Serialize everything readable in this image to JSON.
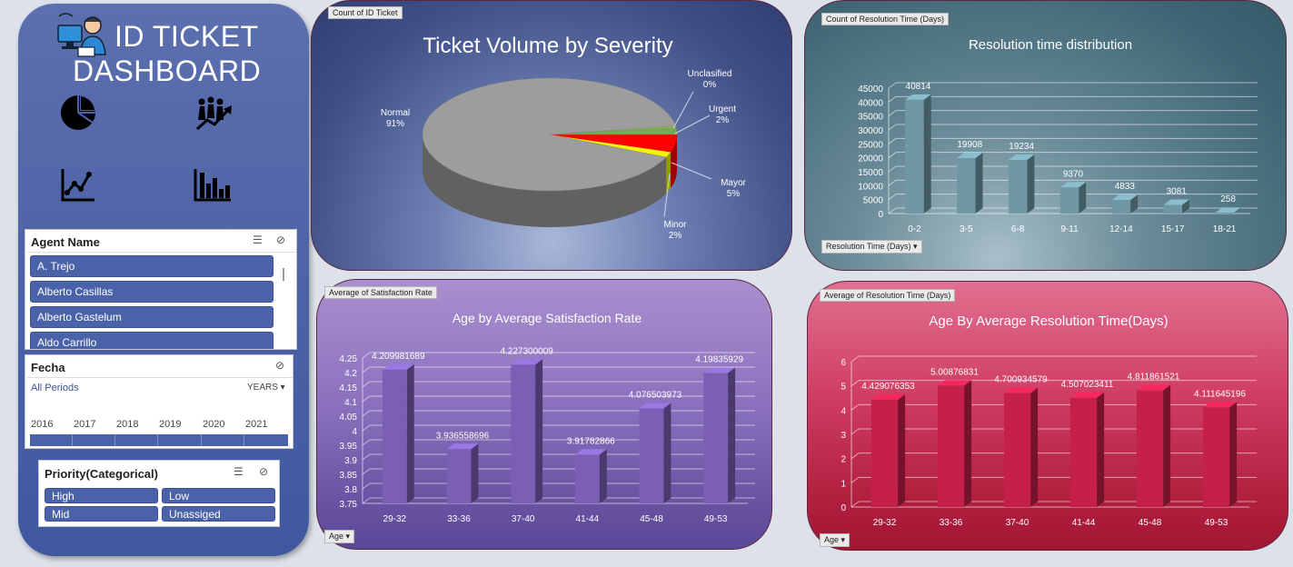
{
  "sidebar": {
    "title_line1": "ID TICKET",
    "title_line2": "DASHBOARD",
    "icons": [
      "pie-chart-icon",
      "growth-team-icon",
      "line-chart-icon",
      "bar-chart-icon"
    ],
    "agent_slicer": {
      "title": "Agent Name",
      "items": [
        "A. Trejo",
        "Alberto Casillas",
        "Alberto Gastelum",
        "Aldo Carrillo"
      ]
    },
    "fecha_slicer": {
      "title": "Fecha",
      "all_periods": "All Periods",
      "period_unit": "YEARS",
      "years": [
        "2016",
        "2017",
        "2018",
        "2019",
        "2020",
        "2021"
      ]
    },
    "priority_slicer": {
      "title": "Priority(Categorical)",
      "items": [
        "High",
        "Low",
        "Mid",
        "Unassiged"
      ]
    }
  },
  "charts": {
    "severity": {
      "field_button": "Count of ID Ticket",
      "chart_data": {
        "type": "pie",
        "title": "Ticket Volume by Severity",
        "labels": [
          "Normal",
          "Unclasified",
          "Urgent",
          "Mayor",
          "Minor"
        ],
        "values": [
          91,
          0,
          2,
          5,
          2
        ],
        "label_texts": [
          "91%",
          "0%",
          "2%",
          "5%",
          "2%"
        ],
        "colors": [
          "#9d9d9d",
          "#8bc34a",
          "#7aa85a",
          "#ff0000",
          "#f5f500"
        ]
      }
    },
    "resolution_dist": {
      "field_button": "Count of Resolution Time (Days)",
      "axis_button": "Resolution Time (Days)",
      "chart_data": {
        "type": "bar",
        "title": "Resolution time distribution",
        "categories": [
          "0-2",
          "3-5",
          "6-8",
          "9-11",
          "12-14",
          "15-17",
          "18-21"
        ],
        "values": [
          40814,
          19908,
          19234,
          9370,
          4833,
          3081,
          258
        ],
        "ylim": [
          0,
          45000
        ],
        "yticks": [
          "0",
          "5000",
          "10000",
          "15000",
          "20000",
          "25000",
          "30000",
          "35000",
          "40000",
          "45000"
        ],
        "data_labels": [
          "40814",
          "19908",
          "19234",
          "9370",
          "4833",
          "3081",
          "258"
        ]
      }
    },
    "satisfaction": {
      "field_button": "Average of Satisfaction Rate",
      "axis_button": "Age",
      "chart_data": {
        "type": "bar",
        "title": "Age by Average Satisfaction Rate",
        "categories": [
          "29-32",
          "33-36",
          "37-40",
          "41-44",
          "45-48",
          "49-53"
        ],
        "values": [
          4.209981689,
          3.936558696,
          4.227300009,
          3.91782866,
          4.076503973,
          4.19835929
        ],
        "ylim": [
          3.75,
          4.25
        ],
        "yticks": [
          "3.75",
          "3.8",
          "3.85",
          "3.9",
          "3.95",
          "4",
          "4.05",
          "4.1",
          "4.15",
          "4.2",
          "4.25"
        ],
        "data_labels": [
          "4.209981689",
          "3.936558696",
          "4.227300009",
          "3.91782866",
          "4.076503973",
          "4.19835929"
        ]
      }
    },
    "avg_resolution": {
      "field_button": "Average of Resolution Time (Days)",
      "axis_button": "Age",
      "chart_data": {
        "type": "bar",
        "title": "Age By Average Resolution Time(Days)",
        "categories": [
          "29-32",
          "33-36",
          "37-40",
          "41-44",
          "45-48",
          "49-53"
        ],
        "values": [
          4.429076353,
          5.00876831,
          4.700934579,
          4.507023411,
          4.811861521,
          4.111645196
        ],
        "ylim": [
          0,
          6
        ],
        "yticks": [
          "0",
          "1",
          "2",
          "3",
          "4",
          "5",
          "6"
        ],
        "data_labels": [
          "4.429076353",
          "5.00876831",
          "4.700934579",
          "4.507023411",
          "4.811861521",
          "4.111645196"
        ]
      }
    }
  }
}
